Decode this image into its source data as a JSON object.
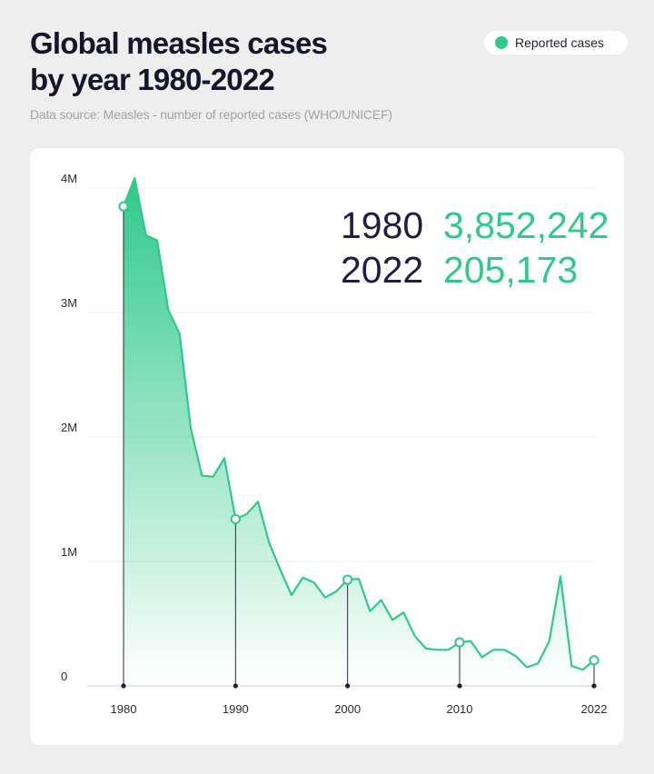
{
  "title_line1": "Global measles cases",
  "title_line2": "by year 1980-2022",
  "subtitle": "Data source: Measles - number of reported cases (WHO/UNICEF)",
  "legend": {
    "label": "Reported cases",
    "color": "#2fc98a"
  },
  "callout": {
    "year1": "1980",
    "value1": "3,852,242",
    "year2": "2022",
    "value2": "205,173"
  },
  "chart_data": {
    "type": "area",
    "title": "Global measles cases by year 1980-2022",
    "xlabel": "",
    "ylabel": "",
    "xlim": [
      1980,
      2022
    ],
    "ylim": [
      0,
      4000000
    ],
    "grid": true,
    "legend_position": "top-right",
    "y_ticks": [
      {
        "value": 0,
        "label": "0"
      },
      {
        "value": 1000000,
        "label": "1M"
      },
      {
        "value": 2000000,
        "label": "2M"
      },
      {
        "value": 3000000,
        "label": "3M"
      },
      {
        "value": 4000000,
        "label": "4M"
      }
    ],
    "x_ticks": [
      1980,
      1990,
      2000,
      2010,
      2022
    ],
    "highlighted_years": [
      1980,
      1990,
      2000,
      2010,
      2022
    ],
    "series": [
      {
        "name": "Reported cases",
        "color": "#2fc98a",
        "x": [
          1980,
          1981,
          1982,
          1983,
          1984,
          1985,
          1986,
          1987,
          1988,
          1989,
          1990,
          1991,
          1992,
          1993,
          1994,
          1995,
          1996,
          1997,
          1998,
          1999,
          2000,
          2001,
          2002,
          2003,
          2004,
          2005,
          2006,
          2007,
          2008,
          2009,
          2010,
          2011,
          2012,
          2013,
          2014,
          2015,
          2016,
          2017,
          2018,
          2019,
          2020,
          2021,
          2022
        ],
        "values": [
          3852242,
          4080000,
          3620000,
          3580000,
          3020000,
          2830000,
          2070000,
          1690000,
          1680000,
          1830000,
          1340000,
          1380000,
          1480000,
          1150000,
          930000,
          730000,
          870000,
          830000,
          710000,
          760000,
          853000,
          860000,
          600000,
          690000,
          530000,
          590000,
          400000,
          300000,
          290000,
          290000,
          350000,
          360000,
          230000,
          290000,
          290000,
          240000,
          150000,
          180000,
          360000,
          880000,
          160000,
          130000,
          205173
        ]
      }
    ]
  }
}
